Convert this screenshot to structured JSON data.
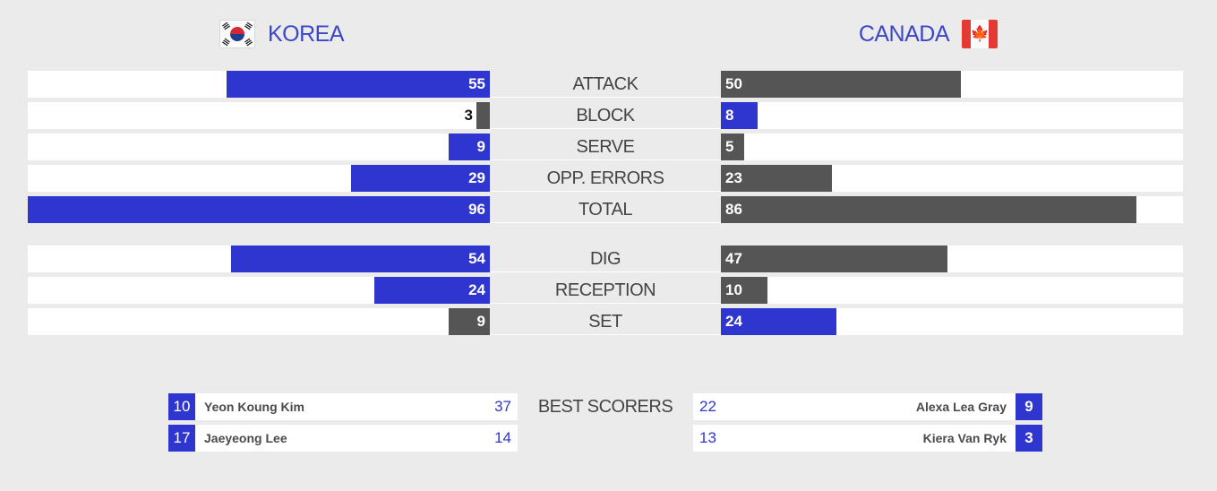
{
  "teams": {
    "home": {
      "name": "KOREA",
      "flag_icon": "south-korea-flag-icon"
    },
    "away": {
      "name": "CANADA",
      "flag_icon": "canada-flag-icon"
    }
  },
  "colors": {
    "leader": "#2f36cf",
    "trailer": "#555555",
    "track": "#ffffff",
    "background": "#ecebeb"
  },
  "stats": [
    {
      "label": "ATTACK",
      "home": "55",
      "away": "50",
      "home_share": 0.57,
      "away_share": 0.52
    },
    {
      "label": "BLOCK",
      "home": "3",
      "away": "8",
      "home_share": 0.03,
      "away_share": 0.08
    },
    {
      "label": "SERVE",
      "home": "9",
      "away": "5",
      "home_share": 0.09,
      "away_share": 0.05
    },
    {
      "label": "OPP. ERRORS",
      "home": "29",
      "away": "23",
      "home_share": 0.3,
      "away_share": 0.24
    },
    {
      "label": "TOTAL",
      "home": "96",
      "away": "86",
      "home_share": 1.0,
      "away_share": 0.9
    },
    {
      "label": "DIG",
      "home": "54",
      "away": "47",
      "home_share": 0.56,
      "away_share": 0.49
    },
    {
      "label": "RECEPTION",
      "home": "24",
      "away": "10",
      "home_share": 0.25,
      "away_share": 0.1
    },
    {
      "label": "SET",
      "home": "9",
      "away": "24",
      "home_share": 0.09,
      "away_share": 0.25
    }
  ],
  "best_scorers": {
    "label": "BEST SCORERS",
    "home": [
      {
        "number": "10",
        "name": "Yeon Koung Kim",
        "points": "37"
      },
      {
        "number": "17",
        "name": "Jaeyeong Lee",
        "points": "14"
      }
    ],
    "away": [
      {
        "number": "9",
        "name": "Alexa Lea Gray",
        "points": "22"
      },
      {
        "number": "3",
        "name": "Kiera Van Ryk",
        "points": "13"
      }
    ]
  }
}
